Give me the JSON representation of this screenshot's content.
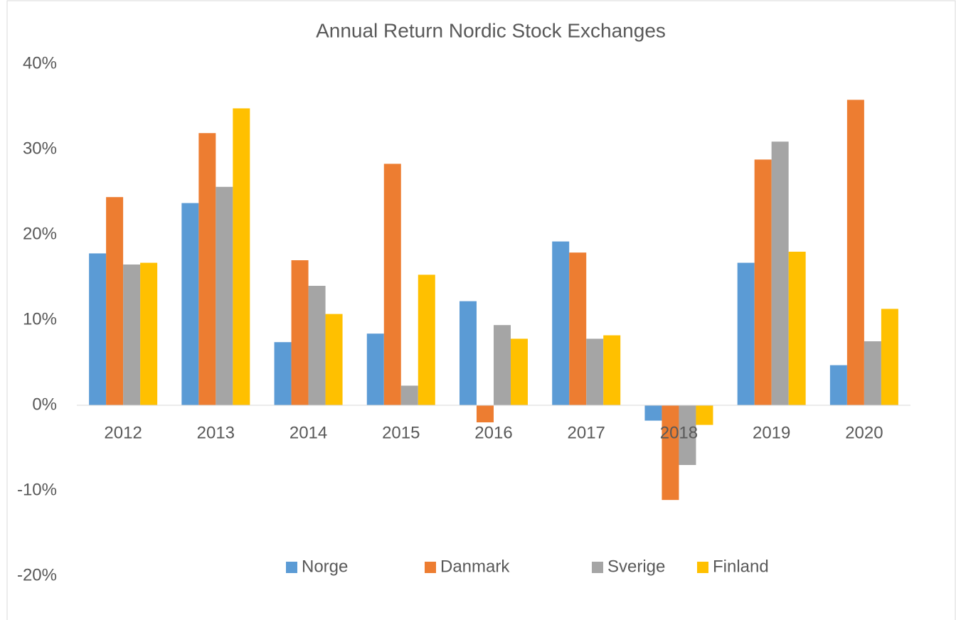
{
  "chart_data": {
    "type": "bar",
    "title": "Annual Return Nordic Stock Exchanges",
    "categories": [
      "2012",
      "2013",
      "2014",
      "2015",
      "2016",
      "2017",
      "2018",
      "2019",
      "2020"
    ],
    "series": [
      {
        "name": "Norge",
        "color": "#5b9bd5",
        "values": [
          17.8,
          23.7,
          7.4,
          8.4,
          12.2,
          19.2,
          -1.8,
          16.7,
          4.7
        ]
      },
      {
        "name": "Danmark",
        "color": "#ed7d31",
        "values": [
          24.4,
          31.9,
          17.0,
          28.3,
          -2.0,
          17.9,
          -11.1,
          28.8,
          35.8
        ]
      },
      {
        "name": "Sverige",
        "color": "#a5a5a5",
        "values": [
          16.5,
          25.6,
          14.0,
          2.3,
          9.4,
          7.8,
          -7.0,
          30.9,
          7.5
        ]
      },
      {
        "name": "Finland",
        "color": "#ffc000",
        "values": [
          16.7,
          34.8,
          10.7,
          15.3,
          7.8,
          8.2,
          -2.3,
          18.0,
          11.3
        ]
      }
    ],
    "ylim": [
      -20,
      40
    ],
    "yticks": [
      {
        "value": -20,
        "label": "-20%"
      },
      {
        "value": -10,
        "label": "-10%"
      },
      {
        "value": 0,
        "label": "0%"
      },
      {
        "value": 10,
        "label": "10%"
      },
      {
        "value": 20,
        "label": "20%"
      },
      {
        "value": 30,
        "label": "30%"
      },
      {
        "value": 40,
        "label": "40%"
      }
    ],
    "legend": "bottom"
  }
}
